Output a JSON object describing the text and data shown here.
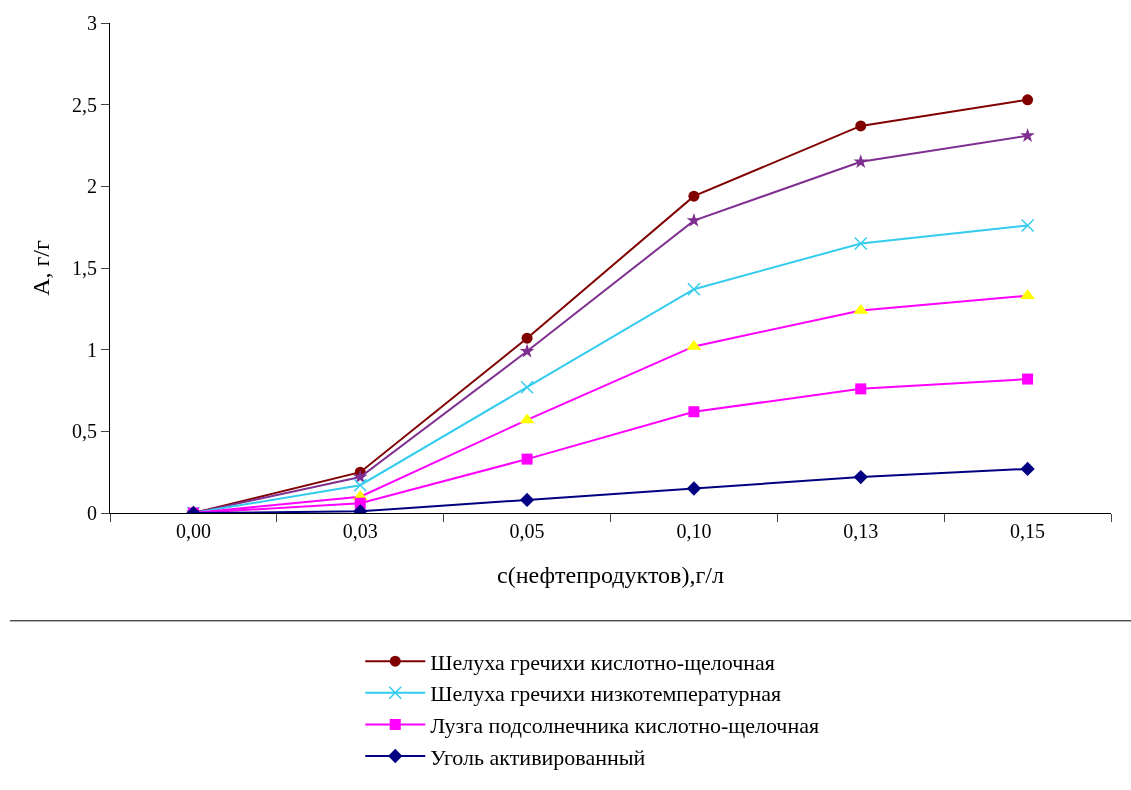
{
  "chart_data": {
    "type": "line",
    "xlabel": "с(нефтепродуктов),г/л",
    "ylabel": "А, г/г",
    "categories": [
      "0,00",
      "0,03",
      "0,05",
      "0,10",
      "0,13",
      "0,15"
    ],
    "ylim": [
      0,
      3
    ],
    "yticks": [
      {
        "value": 0,
        "label": "0"
      },
      {
        "value": 0.5,
        "label": "0,5"
      },
      {
        "value": 1,
        "label": "1"
      },
      {
        "value": 1.5,
        "label": "1,5"
      },
      {
        "value": 2,
        "label": "2"
      },
      {
        "value": 2.5,
        "label": "2,5"
      },
      {
        "value": 3,
        "label": "3"
      }
    ],
    "legend": "bottom",
    "series": [
      {
        "name": "Шелуха гречихи кислотно-щелочная",
        "color": "#800000",
        "marker": "circle",
        "values": [
          0,
          0.25,
          1.07,
          1.94,
          2.37,
          2.53
        ]
      },
      {
        "color": "#7f2f8f",
        "marker": "star",
        "values": [
          0,
          0.22,
          0.99,
          1.79,
          2.15,
          2.31
        ]
      },
      {
        "name": "Шелуха гречихи низкотемпературная",
        "color": "#33ccee",
        "marker": "cross",
        "values": [
          0,
          0.17,
          0.77,
          1.37,
          1.65,
          1.76
        ]
      },
      {
        "color": "#ff00ff",
        "colors": [
          "#ffff00",
          "#ffff00",
          "#ffff00",
          "#ffff00",
          "#ffff00",
          "#ffff00"
        ],
        "marker": "triangle",
        "values": [
          0,
          0.1,
          0.57,
          1.02,
          1.24,
          1.33
        ]
      },
      {
        "name": "Лузга подсолнечника кислотно-щелочная",
        "color": "#ff00ff",
        "marker": "square",
        "values": [
          0,
          0.06,
          0.33,
          0.62,
          0.76,
          0.82
        ]
      },
      {
        "name": "Уголь активированный",
        "color": "#000080",
        "marker": "diamond",
        "values": [
          0,
          0.01,
          0.08,
          0.15,
          0.22,
          0.27
        ]
      }
    ]
  }
}
